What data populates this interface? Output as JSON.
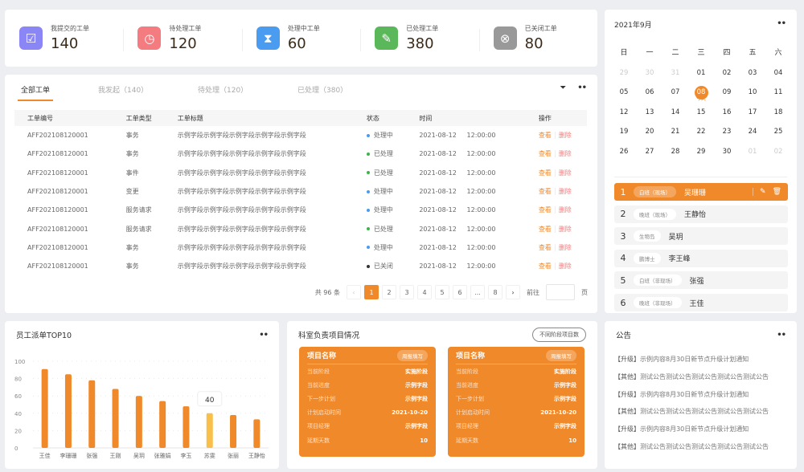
{
  "stats": [
    {
      "label": "我提交的工单",
      "value": "140",
      "icon": "tray-check-icon",
      "color": "#8b86f5"
    },
    {
      "label": "待处理工单",
      "value": "120",
      "icon": "clock-icon",
      "color": "#f47c80"
    },
    {
      "label": "处理中工单",
      "value": "60",
      "icon": "hourglass-icon",
      "color": "#4a9cf0"
    },
    {
      "label": "已处理工单",
      "value": "380",
      "icon": "document-check-icon",
      "color": "#5bb85a"
    },
    {
      "label": "已关闭工单",
      "value": "80",
      "icon": "close-circle-icon",
      "color": "#999999"
    }
  ],
  "orders": {
    "tabs": [
      "全部工单",
      "我发起（140）",
      "待处理（120）",
      "已处理（380）"
    ],
    "columns": [
      "工单编号",
      "工单类型",
      "工单标题",
      "状态",
      "时间",
      "操作"
    ],
    "rows": [
      {
        "id": "AFF202108120001",
        "type": "事务",
        "title": "示例字段示例字段示例字段示例字段示例字段",
        "status": "处理中",
        "status_color": "#4a9cf0",
        "date": "2021-08-12",
        "time": "12:00:00"
      },
      {
        "id": "AFF202108120001",
        "type": "事务",
        "title": "示例字段示例字段示例字段示例字段示例字段",
        "status": "已处理",
        "status_color": "#3bb54a",
        "date": "2021-08-12",
        "time": "12:00:00"
      },
      {
        "id": "AFF202108120001",
        "type": "事件",
        "title": "示例字段示例字段示例字段示例字段示例字段",
        "status": "已处理",
        "status_color": "#3bb54a",
        "date": "2021-08-12",
        "time": "12:00:00"
      },
      {
        "id": "AFF202108120001",
        "type": "变更",
        "title": "示例字段示例字段示例字段示例字段示例字段",
        "status": "处理中",
        "status_color": "#4a9cf0",
        "date": "2021-08-12",
        "time": "12:00:00"
      },
      {
        "id": "AFF202108120001",
        "type": "服务请求",
        "title": "示例字段示例字段示例字段示例字段示例字段",
        "status": "处理中",
        "status_color": "#4a9cf0",
        "date": "2021-08-12",
        "time": "12:00:00"
      },
      {
        "id": "AFF202108120001",
        "type": "服务请求",
        "title": "示例字段示例字段示例字段示例字段示例字段",
        "status": "已处理",
        "status_color": "#3bb54a",
        "date": "2021-08-12",
        "time": "12:00:00"
      },
      {
        "id": "AFF202108120001",
        "type": "事务",
        "title": "示例字段示例字段示例字段示例字段示例字段",
        "status": "处理中",
        "status_color": "#4a9cf0",
        "date": "2021-08-12",
        "time": "12:00:00"
      },
      {
        "id": "AFF202108120001",
        "type": "事务",
        "title": "示例字段示例字段示例字段示例字段示例字段",
        "status": "已关闭",
        "status_color": "#333333",
        "date": "2021-08-12",
        "time": "12:00:00"
      }
    ],
    "view_label": "查看",
    "delete_label": "删除",
    "pagination": {
      "total": "共 96 条",
      "pages": [
        "1",
        "2",
        "3",
        "4",
        "5",
        "6",
        "...",
        "8"
      ],
      "current": "1",
      "goto_label": "前往",
      "page_suffix": "页",
      "goto_value": ""
    }
  },
  "calendar": {
    "title": "2021年9月",
    "weekdays": [
      "日",
      "一",
      "二",
      "三",
      "四",
      "五",
      "六"
    ],
    "days": [
      "29",
      "30",
      "31",
      "01",
      "02",
      "03",
      "04",
      "05",
      "06",
      "07",
      "08",
      "09",
      "10",
      "11",
      "12",
      "13",
      "14",
      "15",
      "16",
      "17",
      "18",
      "19",
      "20",
      "21",
      "22",
      "23",
      "24",
      "25",
      "26",
      "27",
      "28",
      "29",
      "30",
      "01",
      "02"
    ],
    "today": "08",
    "today_label": "今天",
    "duty": [
      {
        "n": "1",
        "tag": "白班（现场）",
        "name": "吴珊珊",
        "active": true
      },
      {
        "n": "2",
        "tag": "晚班（现场）",
        "name": "王静怡"
      },
      {
        "n": "3",
        "tag": "生物岛",
        "name": "吴玥"
      },
      {
        "n": "4",
        "tag": "鹏博士",
        "name": "李王峰"
      },
      {
        "n": "5",
        "tag": "白班（非现场）",
        "name": "张强"
      },
      {
        "n": "6",
        "tag": "晚班（非现场）",
        "name": "王佳"
      }
    ]
  },
  "chart_data": {
    "type": "bar",
    "title": "员工派单TOP10",
    "categories": [
      "王佳",
      "李珊珊",
      "张强",
      "王刚",
      "吴玥",
      "张雅娟",
      "李玉",
      "苏雯",
      "张丽",
      "王静怡"
    ],
    "values": [
      91,
      85,
      78,
      68,
      60,
      54,
      48,
      40,
      38,
      33
    ],
    "ylim": [
      0,
      100
    ],
    "yticks": [
      0,
      20,
      40,
      60,
      80,
      100
    ],
    "highlight_index": 7,
    "tooltip": "40",
    "color": "#f0892a",
    "highlight_color": "#f8c04a",
    "grid": true
  },
  "projects": {
    "title": "科室负责项目情况",
    "filter_label": "不同阶段项目数",
    "cards": [
      {
        "name": "项目名称",
        "action": "周报填写",
        "fields": [
          [
            "当前阶段",
            "实施阶段"
          ],
          [
            "当前进度",
            "示例字段"
          ],
          [
            "下一步计划",
            "示例字段"
          ],
          [
            "计划启动时间",
            "2021-10-20"
          ],
          [
            "项目经理",
            "示例字段"
          ],
          [
            "延期天数",
            "10"
          ]
        ]
      },
      {
        "name": "项目名称",
        "action": "周报填写",
        "fields": [
          [
            "当前阶段",
            "实施阶段"
          ],
          [
            "当前进度",
            "示例字段"
          ],
          [
            "下一步计划",
            "示例字段"
          ],
          [
            "计划启动时间",
            "2021-10-20"
          ],
          [
            "项目经理",
            "示例字段"
          ],
          [
            "延期天数",
            "10"
          ]
        ]
      }
    ]
  },
  "notices": {
    "title": "公告",
    "items": [
      {
        "tag": "【升级】",
        "text": "示例内容8月30日新节点升级计划通知"
      },
      {
        "tag": "【其他】",
        "text": "测试公告测试公告测试公告测试公告测试公告"
      },
      {
        "tag": "【升级】",
        "text": "示例内容8月30日新节点升级计划通知"
      },
      {
        "tag": "【其他】",
        "text": "测试公告测试公告测试公告测试公告测试公告"
      },
      {
        "tag": "【升级】",
        "text": "示例内容8月30日新节点升级计划通知"
      },
      {
        "tag": "【其他】",
        "text": "测试公告测试公告测试公告测试公告测试公告"
      }
    ]
  }
}
